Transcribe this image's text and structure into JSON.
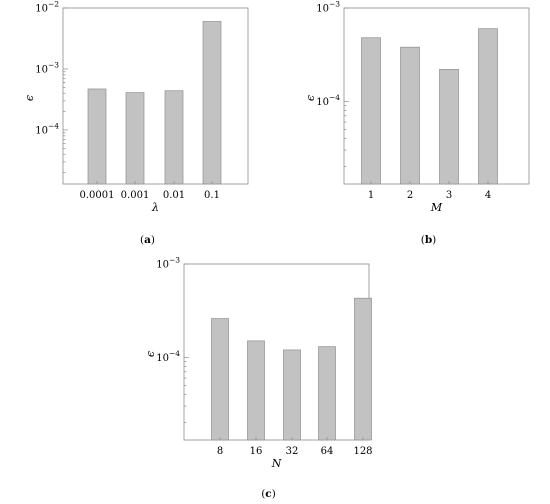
{
  "chart_data": [
    {
      "type": "bar",
      "panel_label": "a",
      "xlabel": "λ",
      "ylabel": "ϵ",
      "yscale": "log",
      "ylim": [
        1.3e-05,
        0.01
      ],
      "yticks": [
        {
          "value": 0.01,
          "base": "10",
          "exp": "−2"
        },
        {
          "value": 0.001,
          "base": "10",
          "exp": "−3"
        },
        {
          "value": 0.0001,
          "base": "10",
          "exp": "−4"
        }
      ],
      "categories": [
        "0.0001",
        "0.001",
        "0.01",
        "0.1"
      ],
      "values": [
        0.00047,
        0.00041,
        0.00044,
        0.006
      ]
    },
    {
      "type": "bar",
      "panel_label": "b",
      "xlabel": "M",
      "ylabel": "ϵ",
      "yscale": "log",
      "ylim": [
        1.3e-05,
        0.001
      ],
      "yticks": [
        {
          "value": 0.001,
          "base": "10",
          "exp": "−3"
        },
        {
          "value": 0.0001,
          "base": "10",
          "exp": "−4"
        }
      ],
      "categories": [
        "1",
        "2",
        "3",
        "4"
      ],
      "values": [
        0.00048,
        0.00038,
        0.00022,
        0.0006
      ]
    },
    {
      "type": "bar",
      "panel_label": "c",
      "xlabel": "N",
      "ylabel": "ϵ",
      "yscale": "log",
      "ylim": [
        1.3e-05,
        0.001
      ],
      "yticks": [
        {
          "value": 0.001,
          "base": "10",
          "exp": "−3"
        },
        {
          "value": 0.0001,
          "base": "10",
          "exp": "−4"
        }
      ],
      "categories": [
        "8",
        "16",
        "32",
        "64",
        "128"
      ],
      "values": [
        0.00026,
        0.00015,
        0.00012,
        0.00013,
        0.00043
      ]
    }
  ]
}
